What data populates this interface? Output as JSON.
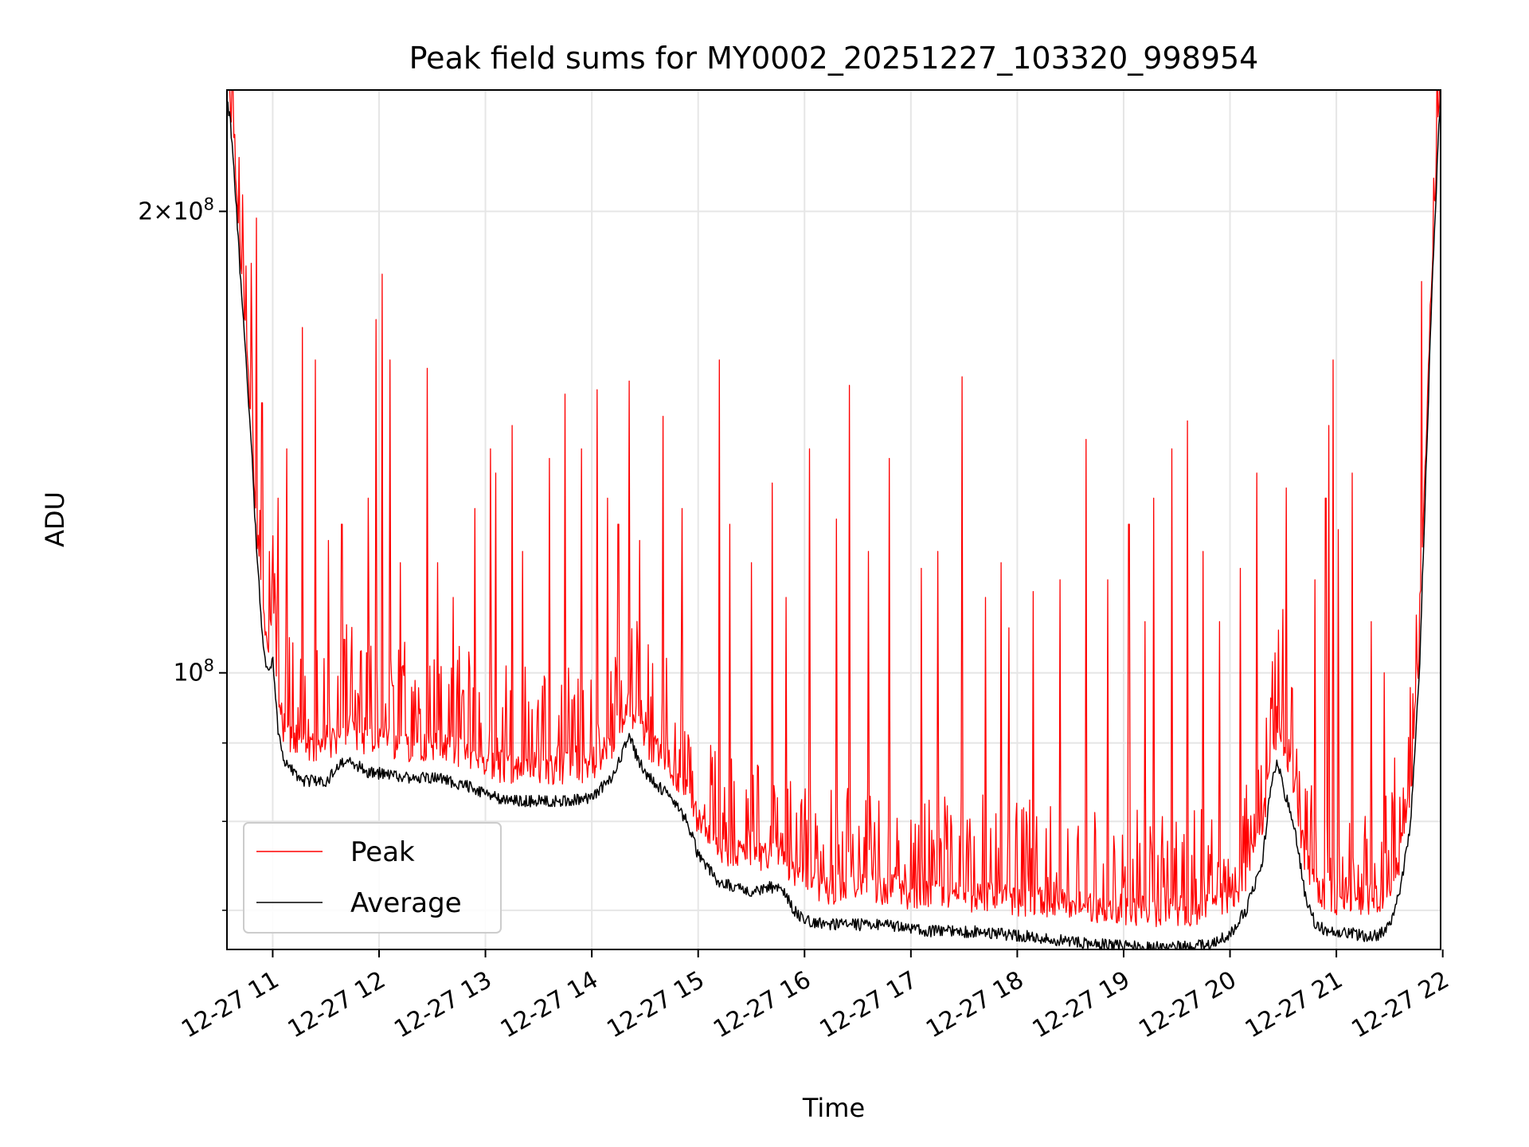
{
  "chart_data": {
    "type": "line",
    "title": "Peak field sums for MY0002_20251227_103320_998954",
    "xlabel": "Time",
    "ylabel": "ADU",
    "yscale": "log",
    "grid": true,
    "legend_position": "lower-left",
    "x_unit": "hour of 2025-12-27",
    "xlim": [
      10.57,
      21.98
    ],
    "ylim": [
      66000000,
      240000000
    ],
    "x_ticks": [
      11,
      12,
      13,
      14,
      15,
      16,
      17,
      18,
      19,
      20,
      21,
      22
    ],
    "x_tick_labels": [
      "12-27 11",
      "12-27 12",
      "12-27 13",
      "12-27 14",
      "12-27 15",
      "12-27 16",
      "12-27 17",
      "12-27 18",
      "12-27 19",
      "12-27 20",
      "12-27 21",
      "12-27 22"
    ],
    "y_major_ticks": [
      {
        "value": 100000000,
        "mantissa": "",
        "exponent": "8"
      },
      {
        "value": 200000000,
        "mantissa": "2",
        "exponent": "8"
      }
    ],
    "y_minor_ticks": [
      70000000,
      80000000,
      90000000
    ],
    "series": [
      {
        "name": "Peak",
        "color": "#ff0000",
        "baseline_offset": 2000000,
        "spikes": [
          [
            10.72,
            205000000
          ],
          [
            10.8,
            185000000
          ],
          [
            10.85,
            198000000
          ],
          [
            10.9,
            150000000
          ],
          [
            10.97,
            120000000
          ],
          [
            11.05,
            130000000
          ],
          [
            11.13,
            140000000
          ],
          [
            11.28,
            168000000
          ],
          [
            11.4,
            160000000
          ],
          [
            11.52,
            122000000
          ],
          [
            11.65,
            125000000
          ],
          [
            11.9,
            130000000
          ],
          [
            11.97,
            170000000
          ],
          [
            12.03,
            182000000
          ],
          [
            12.1,
            160000000
          ],
          [
            12.2,
            118000000
          ],
          [
            12.45,
            158000000
          ],
          [
            12.55,
            118000000
          ],
          [
            12.7,
            112000000
          ],
          [
            12.9,
            128000000
          ],
          [
            13.05,
            140000000
          ],
          [
            13.1,
            135000000
          ],
          [
            13.25,
            145000000
          ],
          [
            13.35,
            120000000
          ],
          [
            13.6,
            138000000
          ],
          [
            13.75,
            152000000
          ],
          [
            13.9,
            140000000
          ],
          [
            14.05,
            153000000
          ],
          [
            14.15,
            130000000
          ],
          [
            14.25,
            125000000
          ],
          [
            14.35,
            155000000
          ],
          [
            14.45,
            122000000
          ],
          [
            14.67,
            147000000
          ],
          [
            14.85,
            128000000
          ],
          [
            15.2,
            160000000
          ],
          [
            15.3,
            125000000
          ],
          [
            15.5,
            118000000
          ],
          [
            15.7,
            133000000
          ],
          [
            15.83,
            112000000
          ],
          [
            16.05,
            140000000
          ],
          [
            16.3,
            126000000
          ],
          [
            16.42,
            154000000
          ],
          [
            16.6,
            120000000
          ],
          [
            16.8,
            138000000
          ],
          [
            17.1,
            117000000
          ],
          [
            17.25,
            120000000
          ],
          [
            17.48,
            156000000
          ],
          [
            17.7,
            112000000
          ],
          [
            17.85,
            118000000
          ],
          [
            17.92,
            107000000
          ],
          [
            18.15,
            113000000
          ],
          [
            18.4,
            115000000
          ],
          [
            18.65,
            142000000
          ],
          [
            18.85,
            115000000
          ],
          [
            19.05,
            125000000
          ],
          [
            19.2,
            108000000
          ],
          [
            19.28,
            130000000
          ],
          [
            19.45,
            140000000
          ],
          [
            19.6,
            146000000
          ],
          [
            19.75,
            120000000
          ],
          [
            19.9,
            108000000
          ],
          [
            20.1,
            117000000
          ],
          [
            20.25,
            135000000
          ],
          [
            20.5,
            110000000
          ],
          [
            20.53,
            132000000
          ],
          [
            20.8,
            115000000
          ],
          [
            20.9,
            130000000
          ],
          [
            20.93,
            145000000
          ],
          [
            20.97,
            160000000
          ],
          [
            21.02,
            124000000
          ],
          [
            21.15,
            135000000
          ],
          [
            21.33,
            108000000
          ],
          [
            21.45,
            100000000
          ],
          [
            21.55,
            88000000
          ],
          [
            21.8,
            180000000
          ]
        ]
      },
      {
        "name": "Average",
        "color": "#000000",
        "points": [
          [
            10.57,
            235000000
          ],
          [
            10.6,
            230000000
          ],
          [
            10.65,
            205000000
          ],
          [
            10.7,
            180000000
          ],
          [
            10.75,
            160000000
          ],
          [
            10.8,
            140000000
          ],
          [
            10.85,
            120000000
          ],
          [
            10.9,
            106000000
          ],
          [
            10.95,
            100000000
          ],
          [
            11.0,
            102000000
          ],
          [
            11.05,
            92000000
          ],
          [
            11.1,
            88000000
          ],
          [
            11.2,
            86000000
          ],
          [
            11.3,
            85000000
          ],
          [
            11.5,
            85000000
          ],
          [
            11.7,
            88000000
          ],
          [
            11.9,
            86000000
          ],
          [
            12.0,
            86000000
          ],
          [
            12.2,
            85500000
          ],
          [
            12.5,
            85500000
          ],
          [
            12.8,
            84500000
          ],
          [
            13.0,
            83500000
          ],
          [
            13.2,
            82500000
          ],
          [
            13.5,
            82500000
          ],
          [
            13.8,
            82500000
          ],
          [
            14.0,
            83000000
          ],
          [
            14.2,
            85500000
          ],
          [
            14.3,
            89000000
          ],
          [
            14.35,
            91500000
          ],
          [
            14.4,
            89000000
          ],
          [
            14.5,
            86000000
          ],
          [
            14.7,
            83500000
          ],
          [
            14.9,
            80000000
          ],
          [
            15.0,
            76000000
          ],
          [
            15.2,
            73000000
          ],
          [
            15.5,
            72000000
          ],
          [
            15.7,
            72500000
          ],
          [
            15.8,
            72000000
          ],
          [
            15.9,
            70000000
          ],
          [
            16.0,
            69000000
          ],
          [
            16.2,
            68500000
          ],
          [
            16.5,
            68500000
          ],
          [
            16.8,
            68500000
          ],
          [
            17.0,
            68000000
          ],
          [
            17.3,
            67800000
          ],
          [
            17.6,
            67800000
          ],
          [
            17.9,
            67500000
          ],
          [
            18.2,
            67200000
          ],
          [
            18.5,
            66800000
          ],
          [
            18.8,
            66500000
          ],
          [
            19.0,
            66300000
          ],
          [
            19.2,
            66200000
          ],
          [
            19.4,
            66200000
          ],
          [
            19.6,
            66300000
          ],
          [
            19.8,
            66500000
          ],
          [
            20.0,
            67500000
          ],
          [
            20.15,
            70000000
          ],
          [
            20.3,
            75000000
          ],
          [
            20.4,
            86000000
          ],
          [
            20.45,
            87500000
          ],
          [
            20.5,
            84000000
          ],
          [
            20.6,
            80000000
          ],
          [
            20.7,
            72000000
          ],
          [
            20.8,
            68500000
          ],
          [
            20.9,
            68000000
          ],
          [
            21.0,
            67500000
          ],
          [
            21.1,
            67800000
          ],
          [
            21.2,
            67500000
          ],
          [
            21.3,
            67300000
          ],
          [
            21.4,
            67500000
          ],
          [
            21.5,
            68500000
          ],
          [
            21.6,
            72000000
          ],
          [
            21.7,
            80000000
          ],
          [
            21.78,
            100000000
          ],
          [
            21.85,
            140000000
          ],
          [
            21.9,
            180000000
          ],
          [
            21.95,
            215000000
          ],
          [
            21.98,
            240000000
          ]
        ]
      }
    ]
  }
}
